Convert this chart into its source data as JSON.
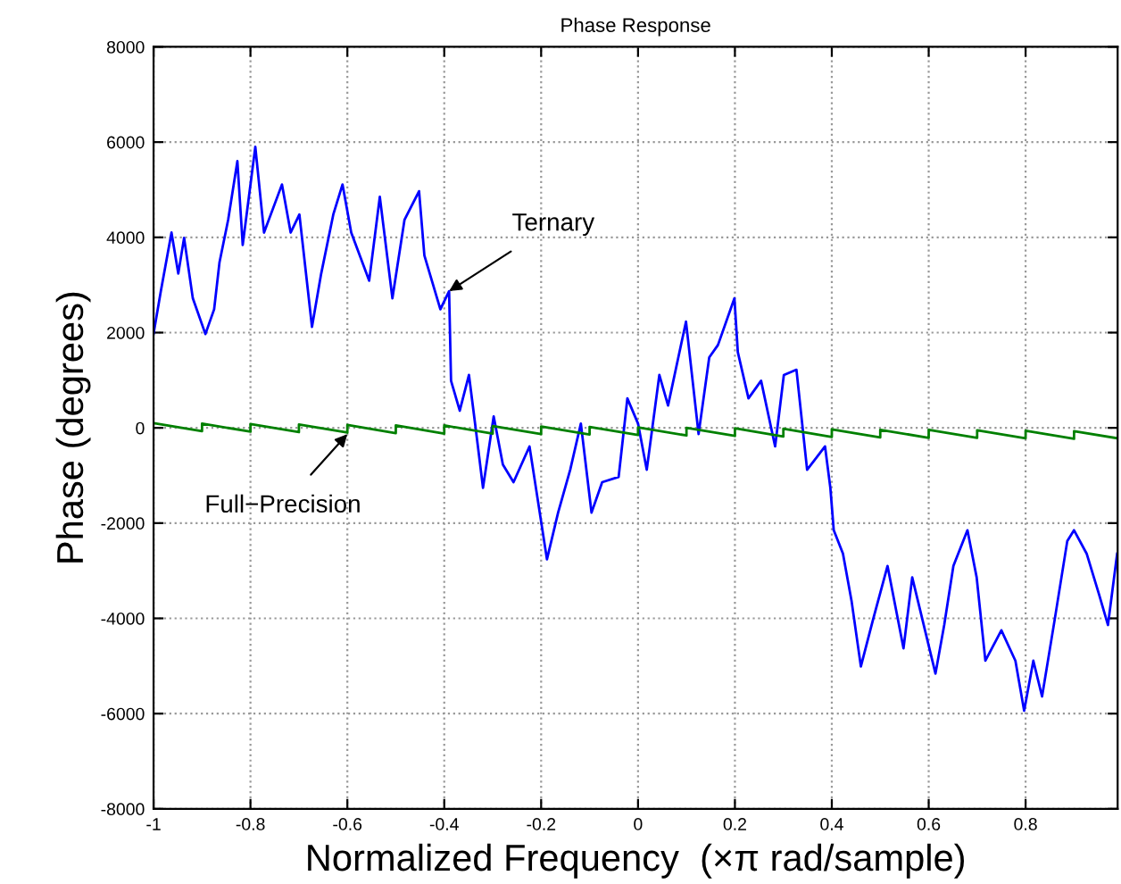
{
  "chart_data": {
    "type": "line",
    "title": "Phase Response",
    "xlabel": "Normalized Frequency  (×π rad/sample)",
    "ylabel": "Phase (degrees)",
    "xlim": [
      -1,
      0.99
    ],
    "ylim": [
      -8000,
      8000
    ],
    "xticks": [
      -1,
      -0.8,
      -0.6,
      -0.4,
      -0.2,
      0,
      0.2,
      0.4,
      0.6,
      0.8
    ],
    "yticks": [
      -8000,
      -6000,
      -4000,
      -2000,
      0,
      2000,
      4000,
      6000,
      8000
    ],
    "grid": true,
    "legend": false,
    "series": [
      {
        "color": "#0000ff",
        "x": [
          -1.0,
          -0.985,
          -0.963,
          -0.949,
          -0.937,
          -0.919,
          -0.893,
          -0.875,
          -0.864,
          -0.846,
          -0.827,
          -0.816,
          -0.79,
          -0.772,
          -0.735,
          -0.717,
          -0.699,
          -0.673,
          -0.654,
          -0.629,
          -0.61,
          -0.592,
          -0.555,
          -0.533,
          -0.507,
          -0.482,
          -0.452,
          -0.441,
          -0.408,
          -0.39,
          -0.386,
          -0.368,
          -0.349,
          -0.335,
          -0.32,
          -0.298,
          -0.279,
          -0.257,
          -0.224,
          -0.188,
          -0.165,
          -0.14,
          -0.118,
          -0.096,
          -0.074,
          -0.04,
          -0.022,
          0.0,
          0.018,
          0.044,
          0.062,
          0.099,
          0.125,
          0.147,
          0.165,
          0.199,
          0.206,
          0.228,
          0.254,
          0.283,
          0.301,
          0.327,
          0.349,
          0.386,
          0.397,
          0.404,
          0.423,
          0.441,
          0.46,
          0.485,
          0.515,
          0.548,
          0.566,
          0.614,
          0.632,
          0.651,
          0.68,
          0.699,
          0.717,
          0.75,
          0.779,
          0.797,
          0.816,
          0.834,
          0.86,
          0.886,
          0.9,
          0.926,
          0.952,
          0.97,
          0.989
        ],
        "values": [
          1980,
          2870,
          4100,
          3240,
          3990,
          2720,
          1970,
          2490,
          3470,
          4370,
          5600,
          3840,
          5900,
          4100,
          5110,
          4100,
          4480,
          2120,
          3240,
          4480,
          5110,
          4100,
          3090,
          4850,
          2720,
          4370,
          4970,
          3620,
          2490,
          2870,
          990,
          360,
          1110,
          -20,
          -1260,
          240,
          -770,
          -1140,
          -390,
          -2760,
          -1780,
          -880,
          90,
          -1780,
          -1140,
          -1030,
          620,
          90,
          -880,
          1110,
          470,
          2230,
          -130,
          1480,
          1740,
          2720,
          1590,
          620,
          990,
          -390,
          1110,
          1220,
          -880,
          -390,
          -1260,
          -2150,
          -2640,
          -3650,
          -5010,
          -4030,
          -2900,
          -4630,
          -3140,
          -5160,
          -4140,
          -2900,
          -2150,
          -3140,
          -4890,
          -4250,
          -4890,
          -5940,
          -4890,
          -5640,
          -4030,
          -2380,
          -2150,
          -2640,
          -3510,
          -4140,
          -2640
        ]
      },
      {
        "color": "#008000",
        "x": [
          -1,
          -0.9,
          -0.9,
          -0.8,
          -0.8,
          -0.7,
          -0.7,
          -0.6,
          -0.6,
          -0.5,
          -0.5,
          -0.4,
          -0.4,
          -0.3,
          -0.3,
          -0.2,
          -0.2,
          -0.1,
          -0.1,
          0,
          0,
          0.1,
          0.1,
          0.2,
          0.2,
          0.3,
          0.3,
          0.4,
          0.4,
          0.5,
          0.5,
          0.6,
          0.6,
          0.7,
          0.7,
          0.8,
          0.8,
          0.9,
          0.9,
          0.99
        ],
        "values": [
          100,
          -70,
          90,
          -80,
          80,
          -90,
          70,
          -100,
          60,
          -110,
          50,
          -120,
          50,
          -120,
          40,
          -130,
          30,
          -140,
          20,
          -150,
          10,
          -160,
          0,
          -170,
          -10,
          -180,
          -20,
          -190,
          -30,
          -200,
          -40,
          -210,
          -40,
          -210,
          -50,
          -220,
          -60,
          -230,
          -70,
          -220
        ]
      }
    ],
    "annotations": [
      {
        "text": "Ternary",
        "x": -0.39,
        "y": 2870
      },
      {
        "text": "Full−Precision",
        "x": -0.6,
        "y": -130
      }
    ]
  }
}
